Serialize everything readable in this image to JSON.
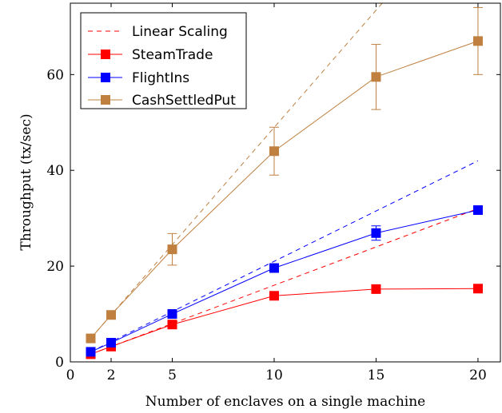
{
  "chart_data": {
    "type": "line",
    "xlabel": "Number of enclaves on a single machine",
    "ylabel": "Throughput (tx/sec)",
    "xlim": [
      0,
      21.1
    ],
    "ylim": [
      0,
      74.9
    ],
    "xticks": [
      0,
      2,
      5,
      10,
      15,
      20
    ],
    "yticks": [
      0,
      20,
      40,
      60
    ],
    "grid": false,
    "legend_position": "top-left",
    "legend": [
      "Linear Scaling",
      "SteamTrade",
      "FlightIns",
      "CashSettledPut"
    ],
    "series": [
      {
        "name": "SteamTrade",
        "color": "#ff0000",
        "x": [
          1,
          2,
          5,
          10,
          15,
          20
        ],
        "y": [
          1.6,
          3.2,
          7.8,
          13.8,
          15.2,
          15.3
        ],
        "err": [
          0.2,
          0.2,
          0.3,
          0.3,
          0.3,
          0.3
        ],
        "linear_scaling": {
          "x": [
            1,
            20
          ],
          "y": [
            1.6,
            32.0
          ]
        }
      },
      {
        "name": "FlightIns",
        "color": "#0000ff",
        "x": [
          1,
          2,
          5,
          10,
          15,
          20
        ],
        "y": [
          2.1,
          4.0,
          10.0,
          19.6,
          26.9,
          31.7
        ],
        "err": [
          0.2,
          0.3,
          0.3,
          0.6,
          1.5,
          0.7
        ],
        "linear_scaling": {
          "x": [
            1,
            20
          ],
          "y": [
            2.1,
            42.0
          ]
        }
      },
      {
        "name": "CashSettledPut",
        "color": "#bf8040",
        "x": [
          1,
          2,
          5,
          10,
          15,
          20
        ],
        "y": [
          4.9,
          9.8,
          23.5,
          44.0,
          59.5,
          67.0
        ],
        "err": [
          0.3,
          0.4,
          3.3,
          5.0,
          6.8,
          7.0
        ],
        "linear_scaling": {
          "x": [
            1,
            15.3
          ],
          "y": [
            4.9,
            74.9
          ]
        }
      }
    ]
  }
}
